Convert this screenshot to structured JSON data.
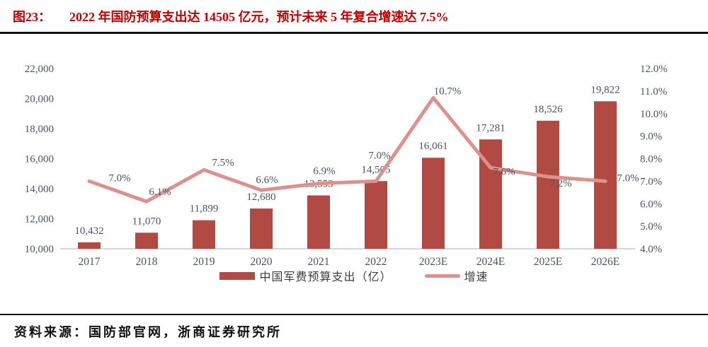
{
  "header": {
    "title_prefix": "图23：",
    "title_text": "2022 年国防预算支出达 14505 亿元，预计未来 5 年复合增速达 7.5%"
  },
  "footer": {
    "source_text": "资料来源：国防部官网，浙商证券研究所"
  },
  "colors": {
    "bar": "#b24a44",
    "line": "#dc918c",
    "title_red": "#c00000",
    "label_text": "#4a5364",
    "axis_line": "#c8c8c8"
  },
  "chart_data": {
    "type": "bar",
    "subtype": "bar+line combo, dual axis",
    "title": "2022 年国防预算支出达 14505 亿元，预计未来 5 年复合增速达 7.5%",
    "xlabel": "",
    "ylabel_left": "中国军费预算支出（亿）",
    "ylabel_right": "增速",
    "grid": false,
    "legend_position": "bottom",
    "categories": [
      "2017",
      "2018",
      "2019",
      "2020",
      "2021",
      "2022",
      "2023E",
      "2024E",
      "2025E",
      "2026E"
    ],
    "series": [
      {
        "name": "中国军费预算支出（亿）",
        "type": "bar",
        "axis": "left",
        "values": [
          10432,
          11070,
          11899,
          12680,
          13553,
          14505,
          16061,
          17281,
          18526,
          19822
        ],
        "labels": [
          "10,432",
          "11,070",
          "11,899",
          "12,680",
          "13,553",
          "14,505",
          "16,061",
          "17,281",
          "18,526",
          "19,822"
        ]
      },
      {
        "name": "增速",
        "type": "line",
        "axis": "right",
        "values": [
          7.0,
          6.1,
          7.5,
          6.6,
          6.9,
          7.0,
          10.7,
          7.6,
          7.2,
          7.0
        ],
        "labels": [
          "7.0%",
          "6.1%",
          "7.5%",
          "6.6%",
          "6.9%",
          "7.0%",
          "10.7%",
          "7.6%",
          "7.2%",
          "7.0%"
        ]
      }
    ],
    "left_axis": {
      "min": 10000,
      "max": 22000,
      "step": 2000,
      "tick_labels": [
        "10,000",
        "12,000",
        "14,000",
        "16,000",
        "18,000",
        "20,000",
        "22,000"
      ]
    },
    "right_axis": {
      "min": 4,
      "max": 12,
      "step": 1,
      "tick_labels": [
        "4.0%",
        "5.0%",
        "6.0%",
        "7.0%",
        "8.0%",
        "9.0%",
        "10.0%",
        "11.0%",
        "12.0%"
      ]
    },
    "legend": {
      "bar_label": "中国军费预算支出（亿）",
      "line_label": "增速"
    }
  }
}
